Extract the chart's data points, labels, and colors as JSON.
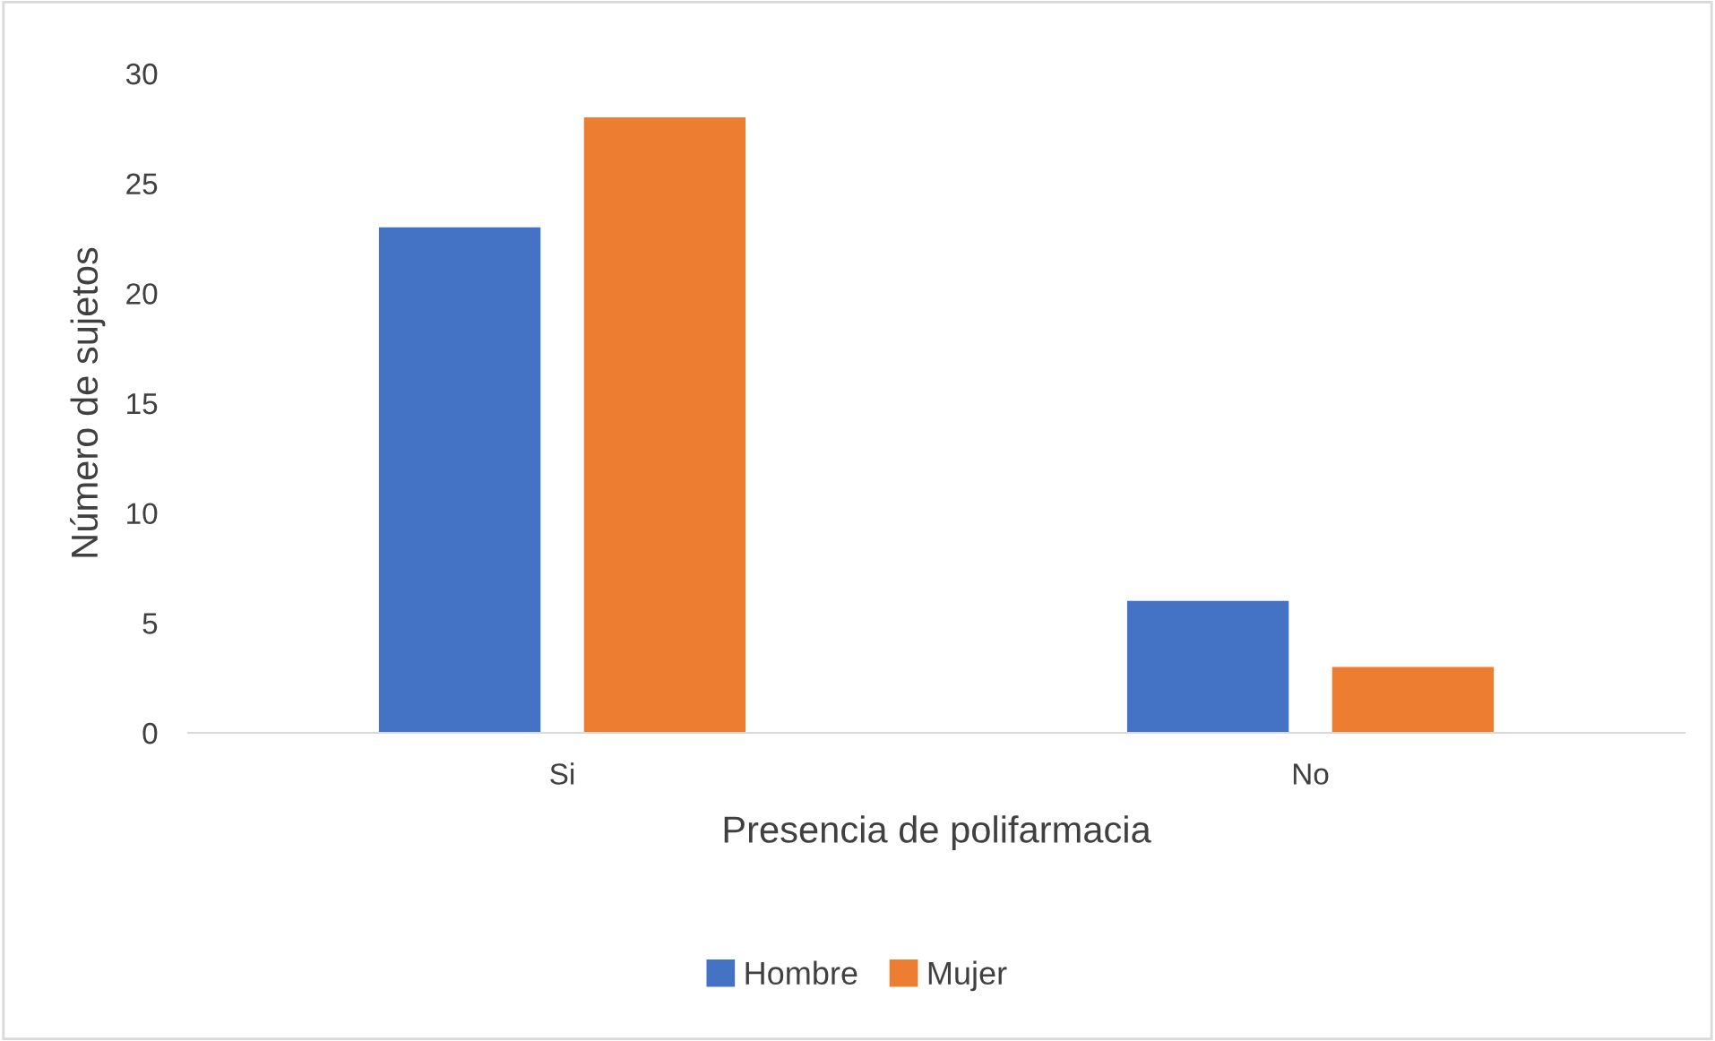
{
  "chart_data": {
    "type": "bar",
    "xlabel": "Presencia de polifarmacia",
    "ylabel": "Número de sujetos",
    "categories": [
      "Si",
      "No"
    ],
    "series": [
      {
        "name": "Hombre",
        "color": "#4472c4",
        "values": [
          23,
          6
        ]
      },
      {
        "name": "Mujer",
        "color": "#ed7d31",
        "values": [
          28,
          3
        ]
      }
    ],
    "ylim": [
      0,
      30
    ],
    "yticks": [
      0,
      5,
      10,
      15,
      20,
      25,
      30
    ],
    "grid": false,
    "legend": "bottom"
  }
}
